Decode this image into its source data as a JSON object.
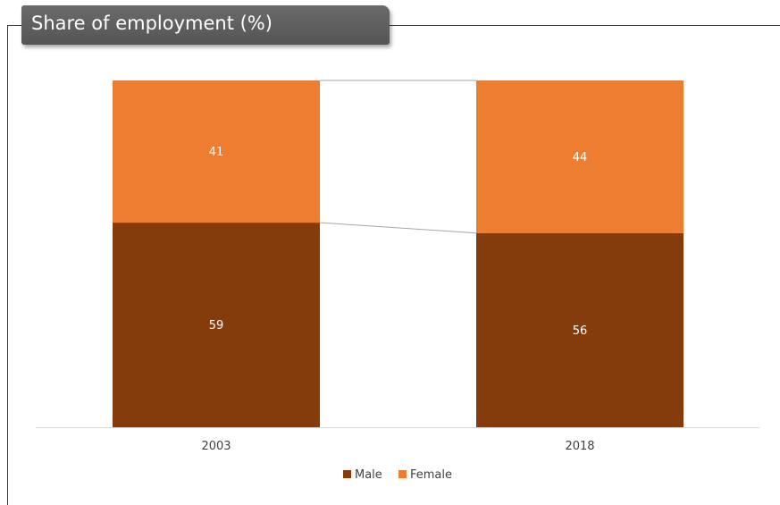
{
  "title": "Share of employment (%)",
  "colors": {
    "male": "#843c0c",
    "female": "#ed7d31",
    "axis": "#d9d9d9",
    "connector": "#a6a6a6"
  },
  "chart_data": {
    "type": "bar",
    "stacked": true,
    "title": "Share of employment (%)",
    "categories": [
      "2003",
      "2018"
    ],
    "series": [
      {
        "name": "Male",
        "values": [
          59,
          56
        ]
      },
      {
        "name": "Female",
        "values": [
          41,
          44
        ]
      }
    ],
    "ylim": [
      0,
      100
    ],
    "grid": false,
    "legend": "bottom",
    "data_labels": true,
    "series_lines": true
  }
}
